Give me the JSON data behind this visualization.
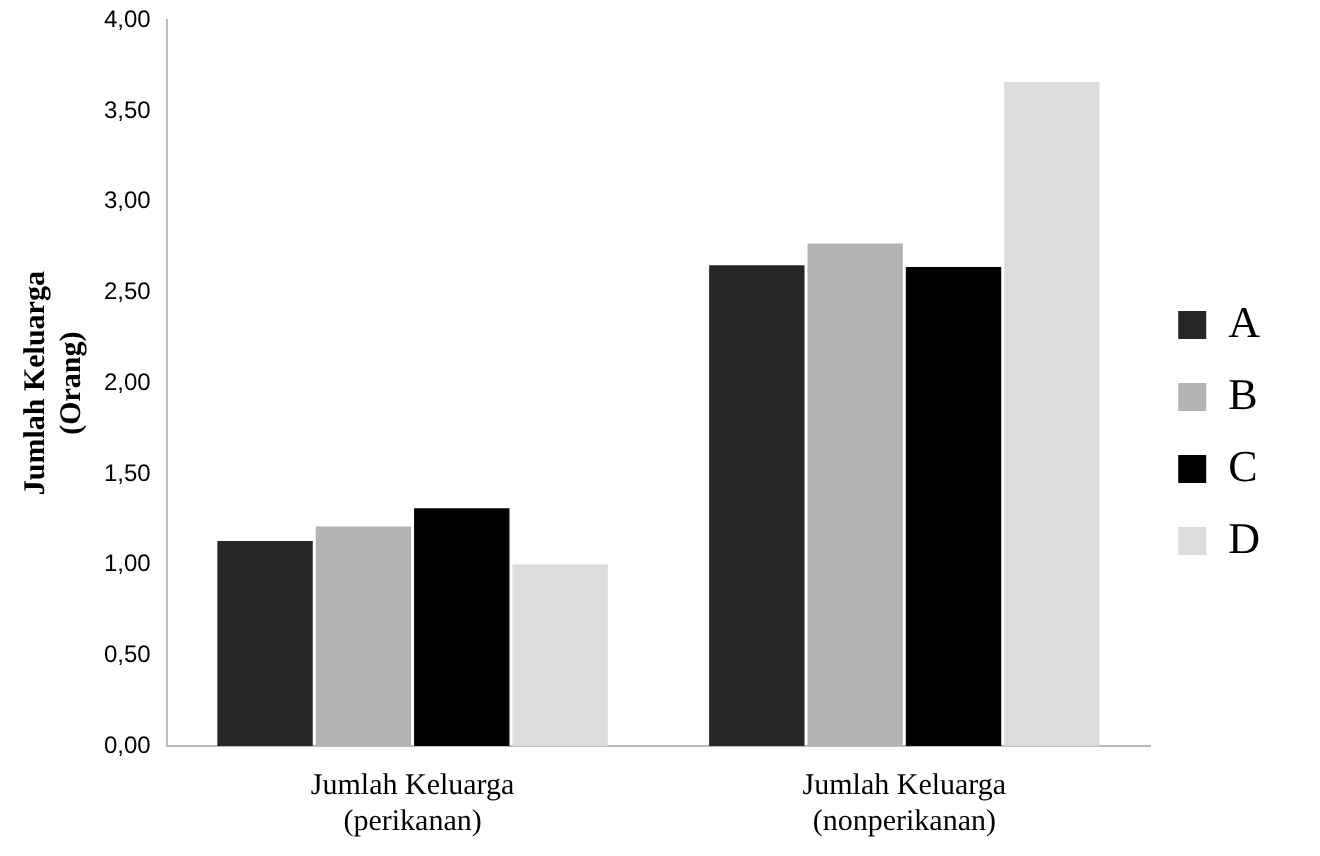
{
  "chart_data": {
    "type": "bar",
    "ylabel": "Jumlah Keluarga\n(Orang)",
    "categories": [
      "Jumlah Keluarga\n(perikanan)",
      "Jumlah Keluarga\n(nonperikanan)"
    ],
    "series": [
      {
        "name": "A",
        "color": "#262626",
        "values": [
          1.13,
          2.65
        ]
      },
      {
        "name": "B",
        "color": "#b4b4b4",
        "values": [
          1.21,
          2.77
        ]
      },
      {
        "name": "C",
        "color": "#000000",
        "values": [
          1.31,
          2.64
        ]
      },
      {
        "name": "D",
        "color": "#dcdcdc",
        "values": [
          1.0,
          3.66
        ]
      }
    ],
    "ylim": [
      0,
      4
    ],
    "yticks": [
      {
        "value": 0,
        "label": "0,00"
      },
      {
        "value": 0.5,
        "label": "0,50"
      },
      {
        "value": 1,
        "label": "1,00"
      },
      {
        "value": 1.5,
        "label": "1,50"
      },
      {
        "value": 2,
        "label": "2,00"
      },
      {
        "value": 2.5,
        "label": "2,50"
      },
      {
        "value": 3,
        "label": "3,00"
      },
      {
        "value": 3.5,
        "label": "3,50"
      },
      {
        "value": 4,
        "label": "4,00"
      }
    ],
    "grid": false,
    "legend": "right"
  }
}
